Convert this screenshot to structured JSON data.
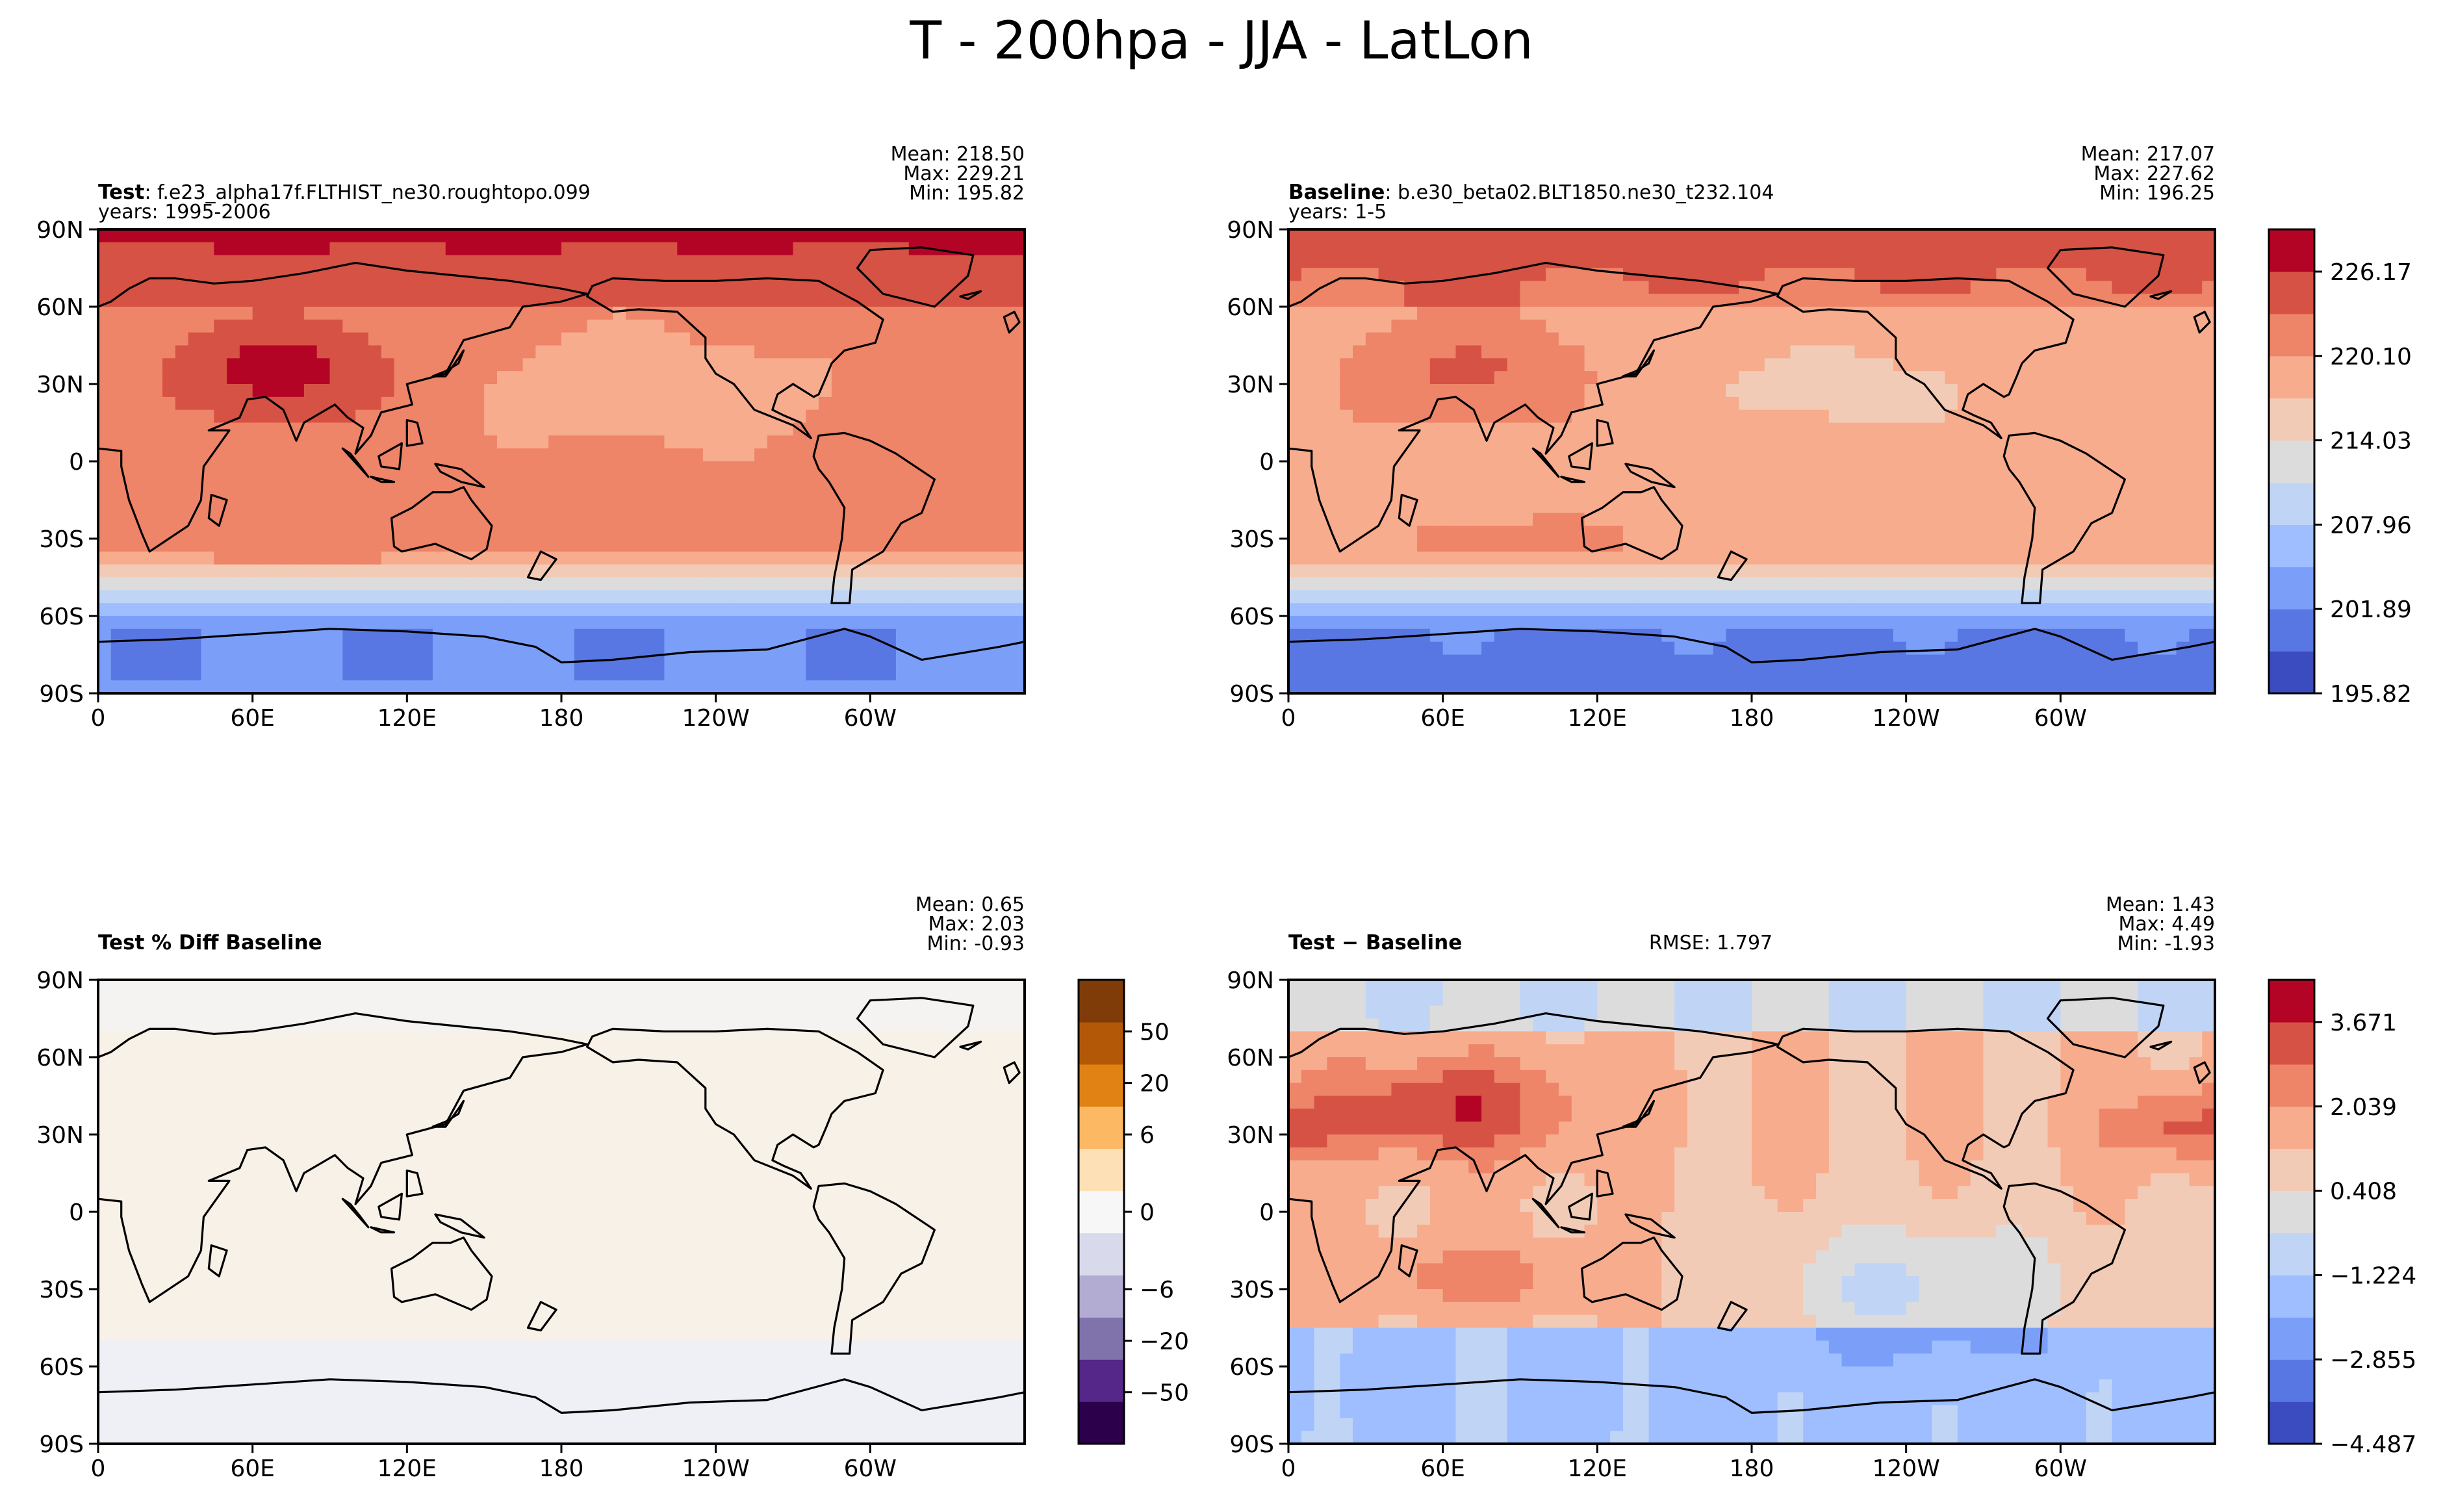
{
  "figure_title": "T - 200hpa - JJA - LatLon",
  "axis_ticks": {
    "x": [
      "0",
      "60E",
      "120E",
      "180",
      "120W",
      "60W"
    ],
    "y": [
      "90N",
      "60N",
      "30N",
      "0",
      "30S",
      "60S",
      "90S"
    ]
  },
  "colors": {
    "coolwarm": [
      "#3b4cc0",
      "#5977e3",
      "#7b9ff9",
      "#9ebeff",
      "#c0d4f5",
      "#dddcdc",
      "#f2cbb7",
      "#f7ac8e",
      "#ee8468",
      "#d65244",
      "#b40426"
    ],
    "puor": [
      "#2d004b",
      "#542788",
      "#8073ac",
      "#b2abd2",
      "#d8daeb",
      "#f7f7f7",
      "#fee0b6",
      "#fdb863",
      "#e08214",
      "#b35806",
      "#7f3b08"
    ]
  },
  "chart_data": [
    {
      "type": "heatmap",
      "panel": "test",
      "title_bold": "Test",
      "title_rest": ": f.e23_alpha17f.FLTHIST_ne30.roughtopo.099",
      "subtitle": "years: 1995-2006",
      "stats": {
        "mean": "Mean: 218.50",
        "max": "Max: 229.21",
        "min": "Min: 195.82"
      },
      "xlim": [
        0,
        360
      ],
      "ylim": [
        -90,
        90
      ],
      "value_range": [
        195.82,
        229.21
      ],
      "field_params": {
        "base": 221.0,
        "asia": 6.5,
        "nh_east": 0.0,
        "south_drop": 19.0
      }
    },
    {
      "type": "heatmap",
      "panel": "baseline",
      "title_bold": "Baseline",
      "title_rest": ": b.e30_beta02.BLT1850.ne30_t232.104",
      "subtitle": "years: 1-5",
      "stats": {
        "mean": "Mean: 217.07",
        "max": "Max: 227.62",
        "min": "Min: 196.25"
      },
      "xlim": [
        0,
        360
      ],
      "ylim": [
        -90,
        90
      ],
      "value_range": [
        196.25,
        227.62
      ],
      "field_params": {
        "base": 219.0,
        "asia": 4.5,
        "nh_east": -1.0,
        "south_drop": 17.5
      },
      "colorbar": {
        "ticks": [
          "226.17",
          "220.10",
          "214.03",
          "207.96",
          "201.89",
          "195.82"
        ],
        "min": 195.82,
        "max": 229.21
      }
    },
    {
      "type": "heatmap",
      "panel": "percent_diff",
      "title_bold": "Test % Diff Baseline",
      "title_rest": "",
      "subtitle": "",
      "stats": {
        "mean": "Mean:  0.65",
        "max": "Max:  2.03",
        "min": "Min: -0.93"
      },
      "xlim": [
        0,
        360
      ],
      "ylim": [
        -90,
        90
      ],
      "value_range": [
        -0.93,
        2.03
      ],
      "colorbar": {
        "ticks": [
          "50",
          "20",
          "6",
          "0",
          "−6",
          "−20",
          "−50"
        ]
      }
    },
    {
      "type": "heatmap",
      "panel": "difference",
      "title_bold": "Test − Baseline",
      "title_rest": "",
      "subtitle": "",
      "rmse": "RMSE: 1.797",
      "stats": {
        "mean": "Mean:  1.43",
        "max": "Max:  4.49",
        "min": "Min: -1.93"
      },
      "xlim": [
        0,
        360
      ],
      "ylim": [
        -90,
        90
      ],
      "value_range": [
        -1.93,
        4.49
      ],
      "colorbar": {
        "ticks": [
          "3.671",
          "2.039",
          "0.408",
          "−1.224",
          "−2.855",
          "−4.487"
        ],
        "min": -4.487,
        "max": 4.487
      }
    }
  ]
}
